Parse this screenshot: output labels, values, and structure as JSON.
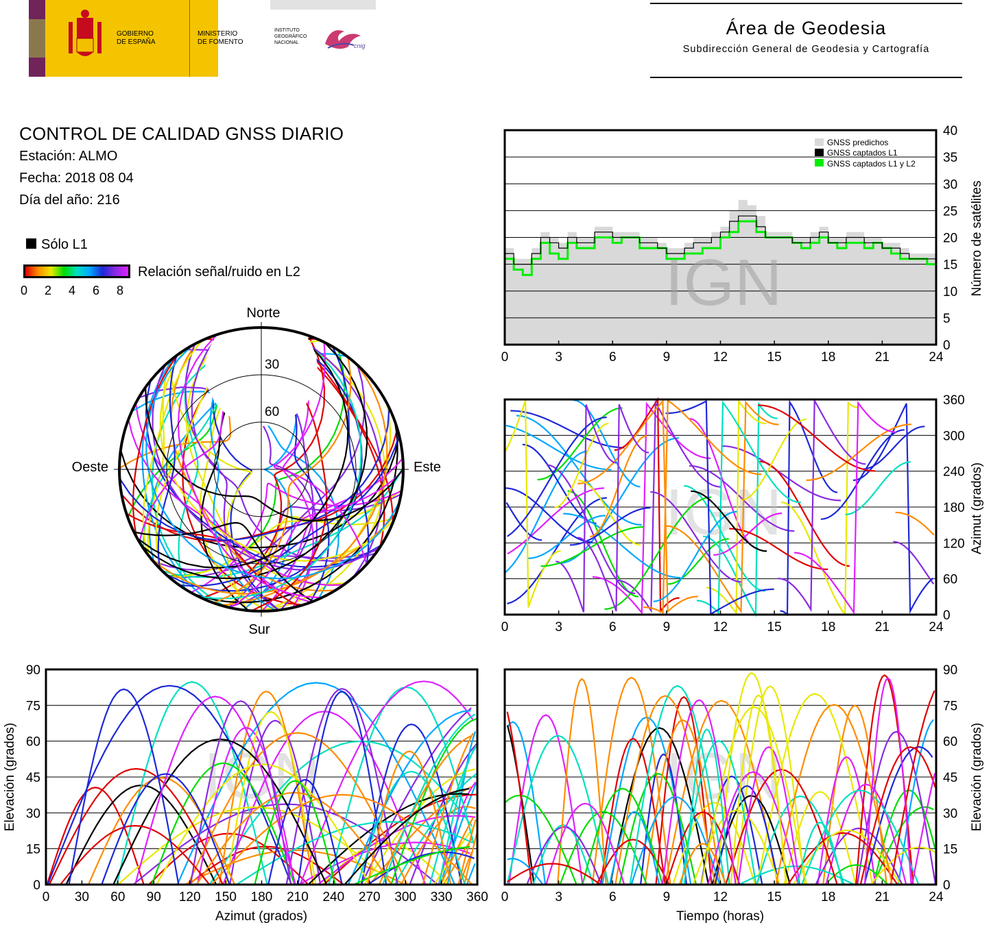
{
  "header": {
    "gov_line1": "GOBIERNO",
    "gov_line2": "DE ESPAÑA",
    "min_line1": "MINISTERIO",
    "min_line2": "DE FOMENTO",
    "ign_line1": "INSTITUTO",
    "ign_line2": "GEOGRÁFICO",
    "ign_line3": "NACIONAL",
    "cnig": "cnig",
    "area_title": "Área de Geodesia",
    "area_subtitle": "Subdirección General de Geodesia y Cartografía"
  },
  "info": {
    "title": "CONTROL DE CALIDAD GNSS DIARIO",
    "station": "Estación: ALMO",
    "date": "Fecha: 2018 08 04",
    "doy": "Día del año: 216"
  },
  "legend": {
    "only_l1": "Sólo L1",
    "snr_label": "Relación señal/ruido en L2",
    "snr_ticks": [
      "0",
      "2",
      "4",
      "6",
      "8"
    ]
  },
  "watermark": "IGN",
  "colors": {
    "predicted": "#d9d9d9",
    "l1": "#000000",
    "l1l2": "#00ee00",
    "snr_scale": [
      "#e00000",
      "#ff8c00",
      "#e8e800",
      "#00dd00",
      "#00e0c0",
      "#00a8ff",
      "#1e28d8",
      "#8a2be2",
      "#e020ff"
    ]
  },
  "chart_data": [
    {
      "type": "skyplot",
      "directions": {
        "north": "Norte",
        "south": "Sur",
        "west": "Oeste",
        "east": "Este"
      },
      "elevation_ring_labels": [
        "30",
        "60"
      ],
      "note_series": "satellite tracks colored by L2 signal-to-noise"
    },
    {
      "type": "area",
      "ylabel": "Número de satélites",
      "xlim": [
        0,
        24
      ],
      "ylim": [
        0,
        40
      ],
      "x_ticks": [
        "0",
        "3",
        "6",
        "9",
        "12",
        "15",
        "18",
        "21",
        "24"
      ],
      "y_ticks": [
        "0",
        "5",
        "10",
        "15",
        "20",
        "25",
        "30",
        "35",
        "40"
      ],
      "legend": [
        "GNSS predichos",
        "GNSS captados L1",
        "GNSS captados L1 y L2"
      ],
      "legend_position": "top-right",
      "grid": true,
      "x": [
        0,
        0.5,
        1,
        1.5,
        2,
        2.5,
        3,
        3.5,
        4,
        4.5,
        5,
        5.5,
        6,
        6.5,
        7,
        7.5,
        8,
        8.5,
        9,
        9.5,
        10,
        10.5,
        11,
        11.5,
        12,
        12.5,
        13,
        13.5,
        14,
        14.5,
        15,
        15.5,
        16,
        16.5,
        17,
        17.5,
        18,
        18.5,
        19,
        19.5,
        20,
        20.5,
        21,
        21.5,
        22,
        22.5,
        23,
        23.5,
        24
      ],
      "series": [
        {
          "name": "GNSS predichos",
          "values": [
            18,
            16,
            16,
            18,
            21,
            20,
            19,
            21,
            20,
            20,
            22,
            22,
            21,
            21,
            21,
            20,
            20,
            19,
            18,
            18,
            19,
            20,
            20,
            21,
            22,
            25,
            27,
            26,
            24,
            21,
            21,
            21,
            20,
            20,
            21,
            22,
            20,
            20,
            21,
            21,
            20,
            20,
            19,
            19,
            18,
            17,
            17,
            17,
            17
          ]
        },
        {
          "name": "GNSS captados L1",
          "values": [
            17,
            15,
            15,
            17,
            20,
            19,
            18,
            20,
            19,
            19,
            21,
            21,
            20,
            20,
            20,
            19,
            19,
            18,
            17,
            17,
            18,
            19,
            19,
            20,
            21,
            23,
            24,
            24,
            22,
            20,
            20,
            20,
            19,
            19,
            20,
            21,
            19,
            19,
            20,
            20,
            19,
            19,
            18,
            18,
            17,
            16,
            16,
            16,
            16
          ]
        },
        {
          "name": "GNSS captados L1 y L2",
          "values": [
            16,
            14,
            13,
            16,
            19,
            17,
            16,
            19,
            18,
            18,
            20,
            20,
            19,
            20,
            20,
            18,
            18,
            18,
            16,
            16,
            17,
            17,
            18,
            18,
            20,
            21,
            23,
            23,
            21,
            20,
            20,
            20,
            19,
            18,
            19,
            20,
            19,
            18,
            19,
            19,
            18,
            19,
            18,
            17,
            16,
            16,
            16,
            15,
            16
          ]
        }
      ]
    },
    {
      "type": "scatter",
      "ylabel": "Azimut (grados)",
      "xlim": [
        0,
        24
      ],
      "ylim": [
        0,
        360
      ],
      "x_ticks": [
        "0",
        "3",
        "6",
        "9",
        "12",
        "15",
        "18",
        "21",
        "24"
      ],
      "y_ticks": [
        "0",
        "60",
        "120",
        "180",
        "240",
        "300",
        "360"
      ],
      "grid": true,
      "note_series": "satellite azimuth tracks vs time colored by L2 SNR"
    },
    {
      "type": "scatter",
      "xlabel": "Azimut (grados)",
      "ylabel": "Elevación (grados)",
      "xlim": [
        0,
        360
      ],
      "ylim": [
        0,
        90
      ],
      "x_ticks": [
        "0",
        "30",
        "60",
        "90",
        "120",
        "150",
        "180",
        "210",
        "240",
        "270",
        "300",
        "330",
        "360"
      ],
      "y_ticks": [
        "0",
        "15",
        "30",
        "45",
        "60",
        "75",
        "90"
      ],
      "grid": true,
      "note_series": "satellite elevation vs azimuth colored by L2 SNR"
    },
    {
      "type": "scatter",
      "xlabel": "Tiempo (horas)",
      "ylabel": "Elevación (grados)",
      "xlim": [
        0,
        24
      ],
      "ylim": [
        0,
        90
      ],
      "x_ticks": [
        "0",
        "3",
        "6",
        "9",
        "12",
        "15",
        "18",
        "21",
        "24"
      ],
      "y_ticks": [
        "0",
        "15",
        "30",
        "45",
        "60",
        "75",
        "90"
      ],
      "grid": true,
      "note_series": "satellite elevation vs time colored by L2 SNR"
    }
  ]
}
